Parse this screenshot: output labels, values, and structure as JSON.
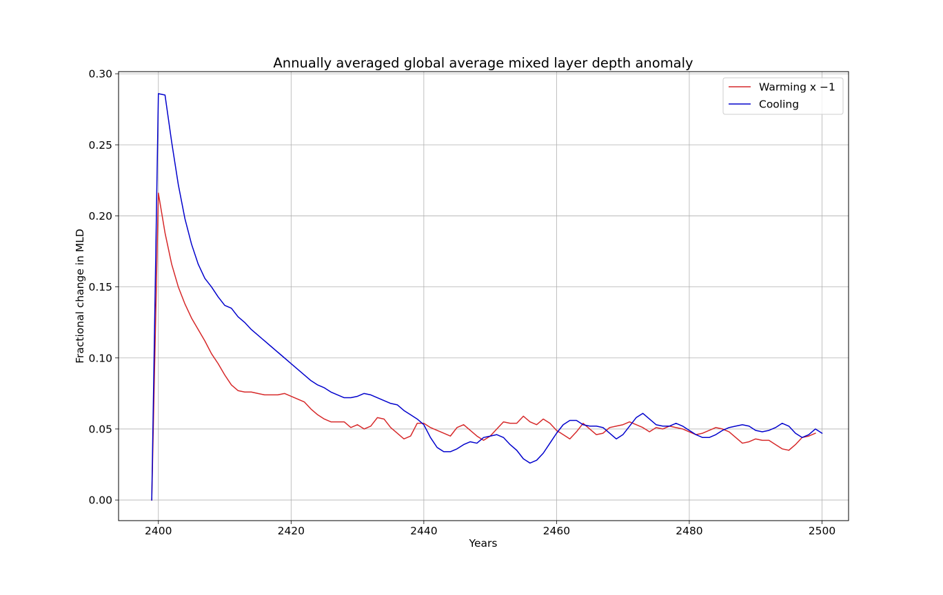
{
  "chart_data": {
    "type": "line",
    "title": "Annually averaged global average mixed layer depth anomaly",
    "xlabel": "Years",
    "ylabel": "Fractional change in MLD",
    "xlim": [
      2394,
      2504
    ],
    "ylim": [
      -0.0145,
      0.3015
    ],
    "xticks": [
      2400,
      2420,
      2440,
      2460,
      2480,
      2500
    ],
    "yticks": [
      0.0,
      0.05,
      0.1,
      0.15,
      0.2,
      0.25,
      0.3
    ],
    "ytick_labels": [
      "0.00",
      "0.05",
      "0.10",
      "0.15",
      "0.20",
      "0.25",
      "0.30"
    ],
    "grid": true,
    "legend": "upper right",
    "series": [
      {
        "name": "Warming x −1",
        "color": "#d62728",
        "x_start": 2399,
        "values": [
          0.0,
          0.216,
          0.188,
          0.166,
          0.15,
          0.138,
          0.128,
          0.12,
          0.112,
          0.103,
          0.096,
          0.088,
          0.081,
          0.077,
          0.076,
          0.076,
          0.075,
          0.074,
          0.074,
          0.074,
          0.075,
          0.073,
          0.071,
          0.069,
          0.064,
          0.06,
          0.057,
          0.055,
          0.055,
          0.055,
          0.051,
          0.053,
          0.05,
          0.052,
          0.058,
          0.057,
          0.051,
          0.047,
          0.043,
          0.045,
          0.054,
          0.054,
          0.051,
          0.049,
          0.047,
          0.045,
          0.051,
          0.053,
          0.049,
          0.045,
          0.042,
          0.045,
          0.05,
          0.055,
          0.054,
          0.054,
          0.059,
          0.055,
          0.053,
          0.057,
          0.054,
          0.049,
          0.046,
          0.043,
          0.048,
          0.054,
          0.05,
          0.046,
          0.047,
          0.051,
          0.052,
          0.053,
          0.055,
          0.053,
          0.051,
          0.048,
          0.051,
          0.05,
          0.052,
          0.051,
          0.05,
          0.048,
          0.046,
          0.047,
          0.049,
          0.051,
          0.05,
          0.048,
          0.044,
          0.04,
          0.041,
          0.043,
          0.042,
          0.042,
          0.039,
          0.036,
          0.035,
          0.039,
          0.044,
          0.045,
          0.047
        ]
      },
      {
        "name": "Cooling",
        "color": "#0000cc",
        "x_start": 2399,
        "values": [
          0.0,
          0.286,
          0.285,
          0.252,
          0.222,
          0.198,
          0.18,
          0.166,
          0.156,
          0.15,
          0.143,
          0.137,
          0.135,
          0.129,
          0.125,
          0.12,
          0.116,
          0.112,
          0.108,
          0.104,
          0.1,
          0.096,
          0.092,
          0.088,
          0.084,
          0.081,
          0.079,
          0.076,
          0.074,
          0.072,
          0.072,
          0.073,
          0.075,
          0.074,
          0.072,
          0.07,
          0.068,
          0.067,
          0.063,
          0.06,
          0.057,
          0.053,
          0.044,
          0.037,
          0.034,
          0.034,
          0.036,
          0.039,
          0.041,
          0.04,
          0.044,
          0.045,
          0.046,
          0.044,
          0.039,
          0.035,
          0.029,
          0.026,
          0.028,
          0.033,
          0.04,
          0.047,
          0.053,
          0.056,
          0.056,
          0.053,
          0.052,
          0.052,
          0.051,
          0.047,
          0.043,
          0.046,
          0.052,
          0.058,
          0.061,
          0.057,
          0.053,
          0.052,
          0.052,
          0.054,
          0.052,
          0.049,
          0.046,
          0.044,
          0.044,
          0.046,
          0.049,
          0.051,
          0.052,
          0.053,
          0.052,
          0.049,
          0.048,
          0.049,
          0.051,
          0.054,
          0.052,
          0.047,
          0.044,
          0.046,
          0.05,
          0.047
        ]
      }
    ]
  }
}
